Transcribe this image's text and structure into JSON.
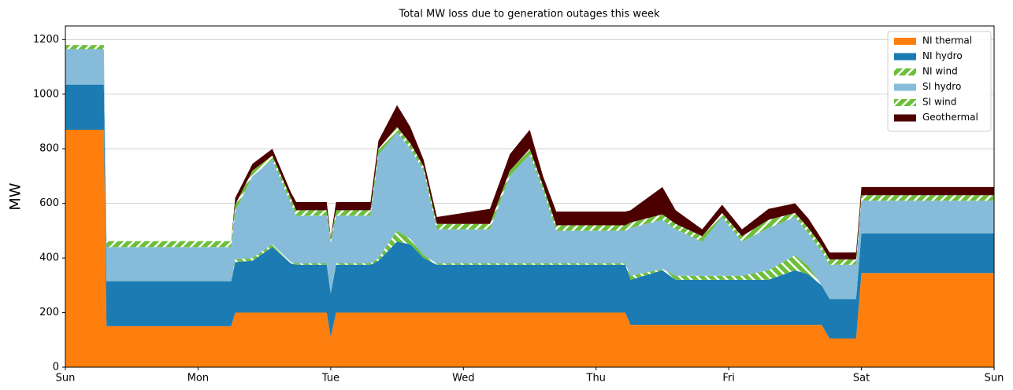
{
  "chart_data": {
    "type": "stacked-area",
    "title": "Total MW loss due to generation outages this week",
    "y_label": "MW",
    "x": [
      0,
      0.29,
      0.31,
      1.25,
      1.28,
      1.41,
      1.56,
      1.7,
      1.74,
      1.97,
      2.0,
      2.04,
      2.3,
      2.36,
      2.5,
      2.6,
      2.7,
      2.8,
      3.2,
      3.35,
      3.5,
      3.6,
      3.7,
      4.22,
      4.26,
      4.5,
      4.6,
      4.8,
      4.95,
      5.1,
      5.3,
      5.5,
      5.6,
      5.7,
      5.76,
      5.96,
      6.0,
      7.0
    ],
    "xlim": [
      0,
      7
    ],
    "xticks": [
      {
        "value": 0,
        "label": "Sun"
      },
      {
        "value": 1,
        "label": "Mon"
      },
      {
        "value": 2,
        "label": "Tue"
      },
      {
        "value": 3,
        "label": "Wed"
      },
      {
        "value": 4,
        "label": "Thu"
      },
      {
        "value": 5,
        "label": "Fri"
      },
      {
        "value": 6,
        "label": "Sat"
      },
      {
        "value": 7,
        "label": "Sun"
      }
    ],
    "ylim": [
      0,
      1250
    ],
    "yticks": [
      0,
      200,
      400,
      600,
      800,
      1000,
      1200
    ],
    "grid": true,
    "legend": "upper right",
    "series": [
      {
        "name": "NI thermal",
        "color": "#ff7f0e",
        "hatch": false,
        "values": [
          870,
          870,
          150,
          150,
          200,
          200,
          200,
          200,
          200,
          200,
          110,
          200,
          200,
          200,
          200,
          200,
          200,
          200,
          200,
          200,
          200,
          200,
          200,
          200,
          155,
          155,
          155,
          155,
          155,
          155,
          155,
          155,
          155,
          155,
          105,
          105,
          345,
          345
        ]
      },
      {
        "name": "NI hydro",
        "color": "#1b7bb2",
        "hatch": false,
        "values": [
          165,
          165,
          165,
          165,
          185,
          190,
          240,
          180,
          175,
          175,
          160,
          175,
          175,
          190,
          260,
          250,
          200,
          175,
          175,
          175,
          175,
          175,
          175,
          175,
          165,
          200,
          165,
          165,
          165,
          165,
          165,
          200,
          185,
          145,
          145,
          145,
          145,
          145
        ]
      },
      {
        "name": "NI wind",
        "color": "#6cbf3a",
        "hatch": true,
        "values": [
          0,
          0,
          0,
          0,
          10,
          10,
          10,
          5,
          5,
          5,
          0,
          5,
          5,
          10,
          40,
          20,
          10,
          5,
          5,
          5,
          5,
          5,
          5,
          5,
          15,
          5,
          15,
          15,
          15,
          15,
          35,
          55,
          30,
          0,
          0,
          0,
          0,
          0
        ]
      },
      {
        "name": "SI hydro",
        "color": "#86bcd9",
        "hatch": false,
        "values": [
          130,
          130,
          125,
          125,
          175,
          300,
          310,
          215,
          175,
          175,
          185,
          175,
          175,
          380,
          360,
          330,
          310,
          125,
          125,
          320,
          400,
          270,
          120,
          120,
          175,
          180,
          170,
          125,
          215,
          125,
          155,
          140,
          120,
          125,
          125,
          125,
          120,
          120
        ]
      },
      {
        "name": "SI wind",
        "color": "#6cbf3a",
        "hatch": true,
        "values": [
          15,
          15,
          22,
          22,
          25,
          20,
          15,
          20,
          20,
          20,
          15,
          20,
          20,
          20,
          20,
          20,
          15,
          20,
          20,
          20,
          20,
          15,
          20,
          20,
          20,
          20,
          20,
          20,
          15,
          20,
          30,
          15,
          20,
          20,
          20,
          20,
          20,
          20
        ]
      },
      {
        "name": "Geothermal",
        "color": "#4d0000",
        "hatch": false,
        "values": [
          0,
          0,
          0,
          0,
          25,
          25,
          25,
          20,
          30,
          30,
          5,
          30,
          30,
          30,
          80,
          60,
          25,
          25,
          55,
          60,
          70,
          35,
          50,
          50,
          45,
          100,
          50,
          25,
          30,
          25,
          40,
          35,
          35,
          25,
          25,
          25,
          30,
          30
        ]
      }
    ]
  }
}
